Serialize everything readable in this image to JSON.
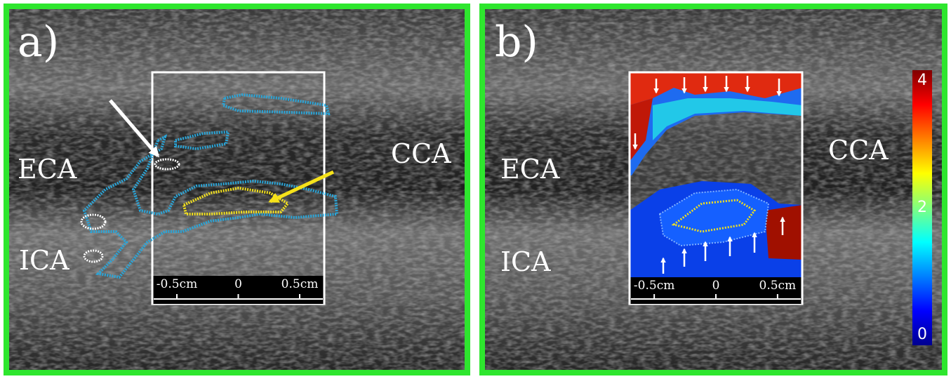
{
  "panels": [
    {
      "label": "a)",
      "annotations": [
        "ECA",
        "CCA",
        "ICA"
      ],
      "scale": {
        "lim": [
          -0.7,
          0.7
        ],
        "ticks": [
          {
            "value": -0.5,
            "label": "-0.5cm"
          },
          0,
          {
            "value": 0.5,
            "label": "0.5cm"
          }
        ]
      }
    },
    {
      "label": "b)",
      "annotations": [
        "ECA",
        "CCA",
        "ICA"
      ],
      "scale": {
        "lim": [
          -0.7,
          0.7
        ],
        "ticks": [
          {
            "value": -0.5,
            "label": "-0.5cm"
          },
          0,
          {
            "value": 0.5,
            "label": "0.5cm"
          }
        ]
      },
      "colorbar": {
        "lim": [
          0,
          4
        ],
        "ticks": [
          0,
          2,
          4
        ]
      }
    }
  ]
}
